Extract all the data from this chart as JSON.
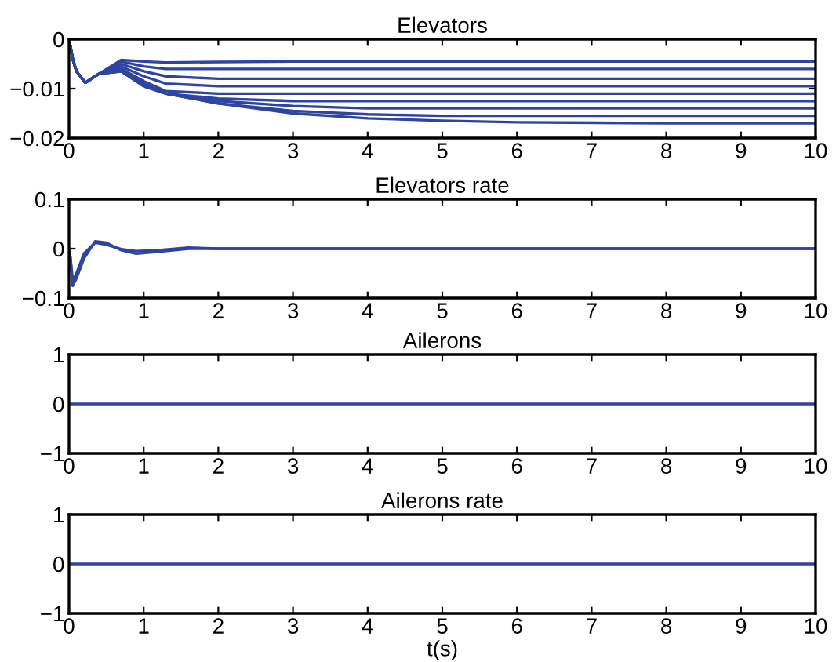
{
  "chart_data": [
    {
      "type": "line",
      "title": "Elevators",
      "xlim": [
        0,
        10
      ],
      "ylim": [
        -0.02,
        0
      ],
      "xticks": [
        0,
        1,
        2,
        3,
        4,
        5,
        6,
        7,
        8,
        9,
        10
      ],
      "yticks": [
        {
          "value": -0.02,
          "label": "−0.02"
        },
        {
          "value": -0.01,
          "label": "−0.01"
        },
        0
      ],
      "grid": false,
      "legend": false,
      "series": [
        {
          "color": "#2e44a0",
          "x": [
            0,
            0.05,
            0.1,
            0.22,
            0.4,
            0.7,
            1,
            1.3,
            2,
            3,
            4,
            5,
            6,
            8,
            10
          ],
          "values": [
            0,
            -0.004,
            -0.0065,
            -0.0088,
            -0.007,
            -0.0042,
            -0.0045,
            -0.0047,
            -0.0046,
            -0.0045,
            -0.0045,
            -0.0045,
            -0.0045,
            -0.0045,
            -0.0045
          ]
        },
        {
          "color": "#2e44a0",
          "x": [
            0,
            0.05,
            0.1,
            0.22,
            0.4,
            0.7,
            1,
            1.3,
            2,
            3,
            4,
            5,
            6,
            8,
            10
          ],
          "values": [
            0,
            -0.004,
            -0.0065,
            -0.0088,
            -0.007,
            -0.0045,
            -0.0055,
            -0.006,
            -0.006,
            -0.006,
            -0.006,
            -0.006,
            -0.006,
            -0.006,
            -0.006
          ]
        },
        {
          "color": "#2e44a0",
          "x": [
            0,
            0.05,
            0.1,
            0.22,
            0.4,
            0.7,
            1,
            1.3,
            2,
            3,
            4,
            5,
            6,
            8,
            10
          ],
          "values": [
            0,
            -0.004,
            -0.0065,
            -0.0088,
            -0.007,
            -0.005,
            -0.0065,
            -0.0075,
            -0.008,
            -0.008,
            -0.008,
            -0.008,
            -0.008,
            -0.008,
            -0.008
          ]
        },
        {
          "color": "#2e44a0",
          "x": [
            0,
            0.05,
            0.1,
            0.22,
            0.4,
            0.7,
            1,
            1.3,
            2,
            3,
            4,
            5,
            6,
            8,
            10
          ],
          "values": [
            0,
            -0.004,
            -0.0065,
            -0.0088,
            -0.007,
            -0.0055,
            -0.0075,
            -0.009,
            -0.0095,
            -0.0095,
            -0.0095,
            -0.0095,
            -0.0095,
            -0.0095,
            -0.0095
          ]
        },
        {
          "color": "#2e44a0",
          "x": [
            0,
            0.05,
            0.1,
            0.22,
            0.4,
            0.7,
            1,
            1.3,
            2,
            3,
            4,
            5,
            6,
            8,
            10
          ],
          "values": [
            0,
            -0.004,
            -0.0065,
            -0.0088,
            -0.007,
            -0.006,
            -0.0085,
            -0.0105,
            -0.011,
            -0.011,
            -0.011,
            -0.011,
            -0.011,
            -0.011,
            -0.011
          ]
        },
        {
          "color": "#2e44a0",
          "x": [
            0,
            0.05,
            0.1,
            0.22,
            0.4,
            0.7,
            1,
            1.3,
            2,
            3,
            4,
            5,
            6,
            8,
            10
          ],
          "values": [
            0,
            -0.004,
            -0.0065,
            -0.0088,
            -0.007,
            -0.0063,
            -0.009,
            -0.011,
            -0.012,
            -0.0125,
            -0.0125,
            -0.0125,
            -0.0125,
            -0.0125,
            -0.0125
          ]
        },
        {
          "color": "#2e44a0",
          "x": [
            0,
            0.05,
            0.1,
            0.22,
            0.4,
            0.7,
            1,
            1.3,
            2,
            3,
            4,
            5,
            6,
            8,
            10
          ],
          "values": [
            0,
            -0.004,
            -0.0065,
            -0.0088,
            -0.007,
            -0.0065,
            -0.0092,
            -0.011,
            -0.0125,
            -0.0135,
            -0.014,
            -0.014,
            -0.014,
            -0.014,
            -0.014
          ]
        },
        {
          "color": "#2e44a0",
          "x": [
            0,
            0.05,
            0.1,
            0.22,
            0.4,
            0.7,
            1,
            1.3,
            2,
            3,
            4,
            5,
            6,
            8,
            10
          ],
          "values": [
            0,
            -0.004,
            -0.0065,
            -0.0088,
            -0.007,
            -0.0065,
            -0.0095,
            -0.011,
            -0.013,
            -0.0145,
            -0.0152,
            -0.0155,
            -0.0155,
            -0.0155,
            -0.0155
          ]
        },
        {
          "color": "#2e44a0",
          "x": [
            0,
            0.05,
            0.1,
            0.22,
            0.4,
            0.7,
            1,
            1.3,
            2,
            3,
            4,
            5,
            6,
            8,
            10
          ],
          "values": [
            0,
            -0.004,
            -0.0065,
            -0.0088,
            -0.007,
            -0.0065,
            -0.0095,
            -0.011,
            -0.013,
            -0.015,
            -0.016,
            -0.0165,
            -0.0168,
            -0.017,
            -0.017
          ]
        }
      ]
    },
    {
      "type": "line",
      "title": "Elevators rate",
      "xlim": [
        0,
        10
      ],
      "ylim": [
        -0.1,
        0.1
      ],
      "xticks": [
        0,
        1,
        2,
        3,
        4,
        5,
        6,
        7,
        8,
        9,
        10
      ],
      "yticks": [
        {
          "value": -0.1,
          "label": "−0.1"
        },
        0,
        0.1
      ],
      "grid": false,
      "legend": false,
      "series": [
        {
          "color": "#2e44a0",
          "x": [
            0,
            0.02,
            0.05,
            0.1,
            0.2,
            0.35,
            0.5,
            0.7,
            0.9,
            1.2,
            1.6,
            2,
            10
          ],
          "values": [
            0,
            -0.02,
            -0.075,
            -0.06,
            -0.02,
            0.015,
            0.012,
            -0.003,
            -0.01,
            -0.006,
            0,
            0,
            0
          ]
        },
        {
          "color": "#2e44a0",
          "x": [
            0,
            0.02,
            0.05,
            0.1,
            0.2,
            0.35,
            0.5,
            0.7,
            0.9,
            1.2,
            1.6,
            2,
            10
          ],
          "values": [
            0,
            -0.02,
            -0.065,
            -0.05,
            -0.01,
            0.012,
            0.008,
            -0.001,
            -0.005,
            -0.003,
            0.002,
            0,
            0
          ]
        }
      ]
    },
    {
      "type": "line",
      "title": "Ailerons",
      "xlim": [
        0,
        10
      ],
      "ylim": [
        -1,
        1
      ],
      "xticks": [
        0,
        1,
        2,
        3,
        4,
        5,
        6,
        7,
        8,
        9,
        10
      ],
      "yticks": [
        {
          "value": -1,
          "label": "−1"
        },
        0,
        1
      ],
      "grid": false,
      "legend": false,
      "series": [
        {
          "color": "#2e44a0",
          "x": [
            0,
            10
          ],
          "values": [
            0,
            0
          ]
        }
      ]
    },
    {
      "type": "line",
      "title": "Ailerons rate",
      "xlabel": "t(s)",
      "xlim": [
        0,
        10
      ],
      "ylim": [
        -1,
        1
      ],
      "xticks": [
        0,
        1,
        2,
        3,
        4,
        5,
        6,
        7,
        8,
        9,
        10
      ],
      "yticks": [
        {
          "value": -1,
          "label": "−1"
        },
        0,
        1
      ],
      "grid": false,
      "legend": false,
      "series": [
        {
          "color": "#2e44a0",
          "x": [
            0,
            10
          ],
          "values": [
            0,
            0
          ]
        }
      ]
    }
  ]
}
